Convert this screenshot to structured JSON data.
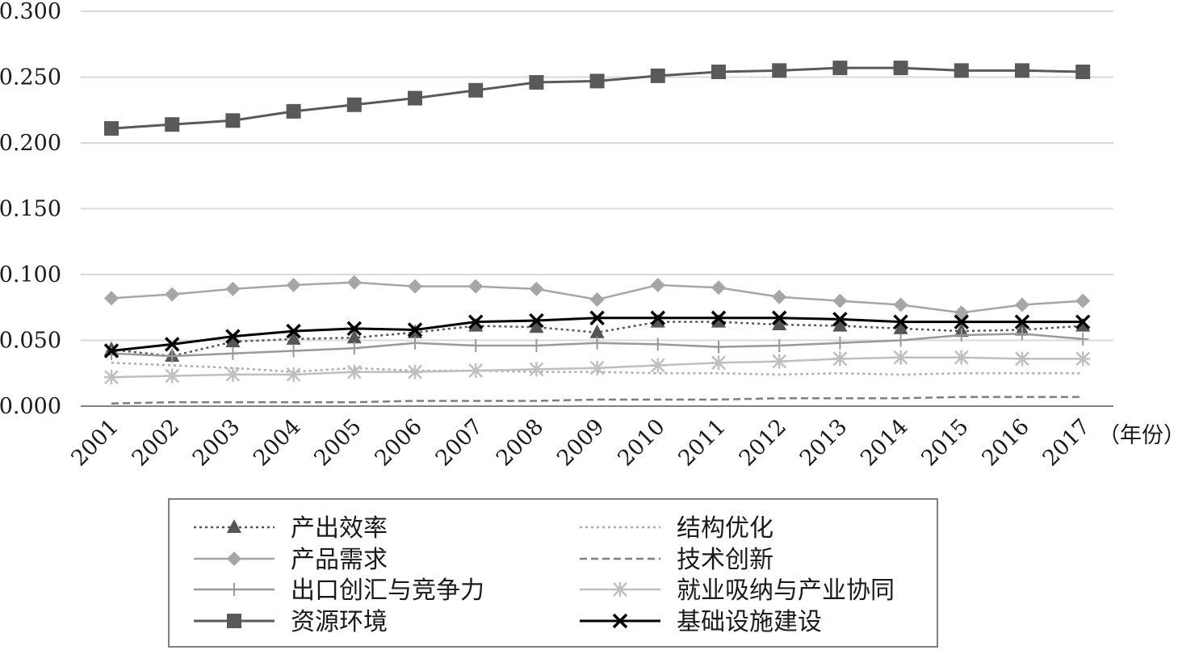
{
  "chart_data": {
    "type": "line",
    "x_unit_label": "（年份）",
    "categories": [
      "2001",
      "2002",
      "2003",
      "2004",
      "2005",
      "2006",
      "2007",
      "2008",
      "2009",
      "2010",
      "2011",
      "2012",
      "2013",
      "2014",
      "2015",
      "2016",
      "2017"
    ],
    "y_ticks": [
      "0.000",
      "0.050",
      "0.100",
      "0.150",
      "0.200",
      "0.250",
      "0.300"
    ],
    "ylim": [
      0,
      0.3
    ],
    "grid": true,
    "legend_position": "bottom",
    "series": [
      {
        "name": "产出效率",
        "color": "#555555",
        "line_style": "dotted",
        "marker": "triangle",
        "values": [
          0.043,
          0.038,
          0.049,
          0.051,
          0.052,
          0.056,
          0.061,
          0.06,
          0.056,
          0.064,
          0.064,
          0.062,
          0.061,
          0.059,
          0.057,
          0.058,
          0.061
        ]
      },
      {
        "name": "结构优化",
        "color": "#aaaaaa",
        "line_style": "dotted",
        "marker": "none",
        "values": [
          0.033,
          0.031,
          0.029,
          0.026,
          0.029,
          0.027,
          0.027,
          0.026,
          0.026,
          0.025,
          0.025,
          0.024,
          0.025,
          0.024,
          0.025,
          0.025,
          0.025
        ]
      },
      {
        "name": "产品需求",
        "color": "#a6a6a6",
        "line_style": "solid",
        "marker": "diamond",
        "values": [
          0.082,
          0.085,
          0.089,
          0.092,
          0.094,
          0.091,
          0.091,
          0.089,
          0.081,
          0.092,
          0.09,
          0.083,
          0.08,
          0.077,
          0.071,
          0.077,
          0.08
        ]
      },
      {
        "name": "技术创新",
        "color": "#7f7f7f",
        "line_style": "dashed",
        "marker": "none",
        "values": [
          0.002,
          0.003,
          0.003,
          0.003,
          0.003,
          0.004,
          0.004,
          0.004,
          0.005,
          0.005,
          0.005,
          0.006,
          0.006,
          0.006,
          0.007,
          0.007,
          0.007
        ]
      },
      {
        "name": "出口创汇与竞争力",
        "color": "#999999",
        "line_style": "solid",
        "marker": "plus",
        "values": [
          0.04,
          0.038,
          0.04,
          0.042,
          0.044,
          0.048,
          0.046,
          0.046,
          0.048,
          0.047,
          0.045,
          0.046,
          0.048,
          0.05,
          0.054,
          0.055,
          0.051
        ]
      },
      {
        "name": "就业吸纳与产业协同",
        "color": "#bfbfbf",
        "line_style": "solid",
        "marker": "asterisk",
        "values": [
          0.022,
          0.023,
          0.024,
          0.024,
          0.026,
          0.026,
          0.027,
          0.028,
          0.029,
          0.031,
          0.033,
          0.034,
          0.036,
          0.037,
          0.037,
          0.036,
          0.036
        ]
      },
      {
        "name": "资源环境",
        "color": "#595959",
        "line_style": "solid",
        "marker": "square",
        "values": [
          0.211,
          0.214,
          0.217,
          0.224,
          0.229,
          0.234,
          0.24,
          0.246,
          0.247,
          0.251,
          0.254,
          0.255,
          0.257,
          0.257,
          0.255,
          0.255,
          0.254
        ]
      },
      {
        "name": "基础设施建设",
        "color": "#000000",
        "line_style": "solid",
        "marker": "x",
        "values": [
          0.042,
          0.047,
          0.053,
          0.057,
          0.059,
          0.058,
          0.064,
          0.065,
          0.067,
          0.067,
          0.067,
          0.067,
          0.066,
          0.064,
          0.064,
          0.064,
          0.064
        ]
      }
    ]
  }
}
